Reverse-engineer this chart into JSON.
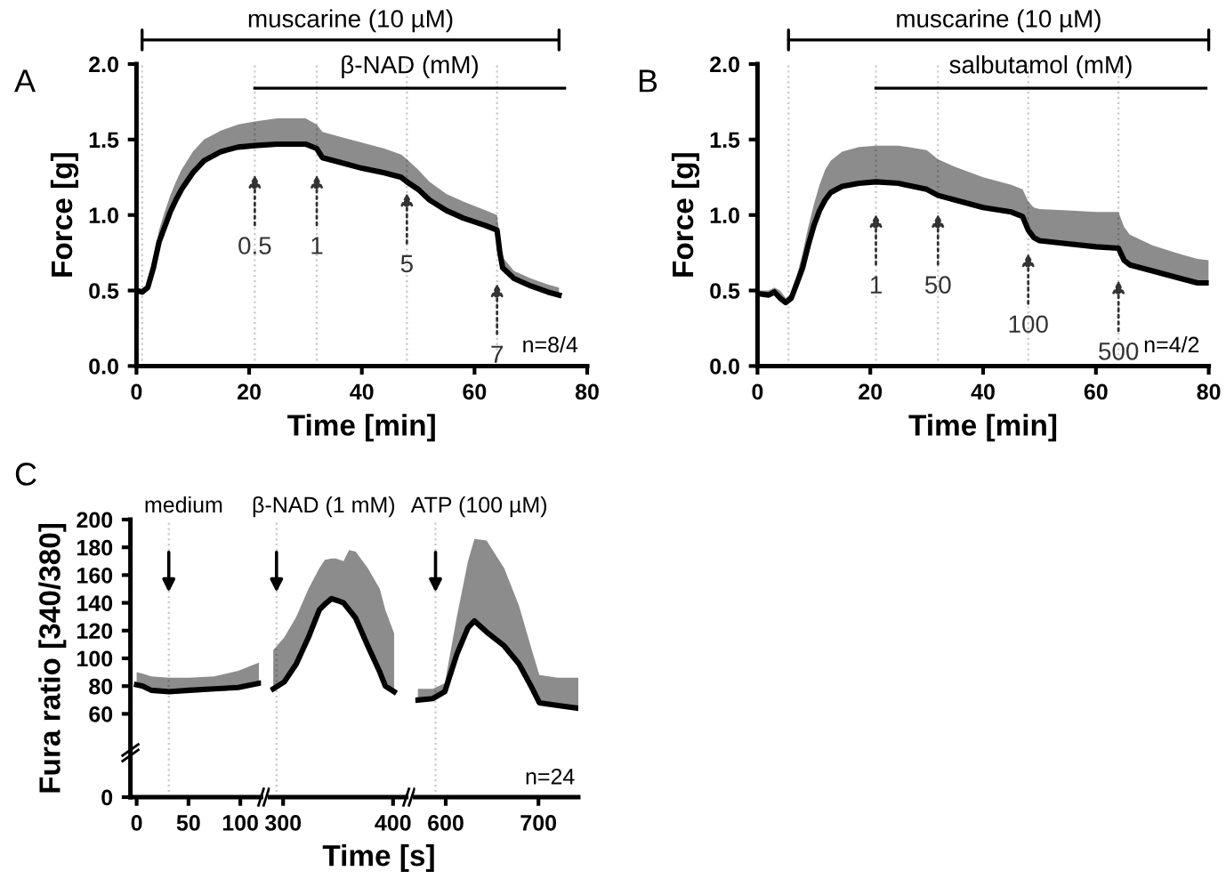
{
  "chart_data": [
    {
      "type": "line",
      "title": "A",
      "xlabel": "Time [min]",
      "ylabel": "Force [g]",
      "xlim": [
        0,
        80
      ],
      "xticks": [
        0,
        20,
        40,
        60,
        80
      ],
      "ylim": [
        0,
        2
      ],
      "yticks": [
        {
          "value": 0,
          "label": "0.0"
        },
        0.5,
        {
          "value": 1,
          "label": "1.0"
        },
        1.5,
        {
          "value": 2,
          "label": "2.0"
        }
      ],
      "annotations": [
        "muscarine (10 µM)",
        {
          "text": "0.5",
          "x": 21,
          "y": 1.3
        },
        {
          "text": "1",
          "x": 32,
          "y": 1.3
        },
        {
          "text": "5",
          "x": 48,
          "y": 1.18
        },
        {
          "text": "7",
          "x": 64,
          "y": 0.58
        },
        "n=8/4"
      ],
      "ref_lines": [
        {
          "axis": "x",
          "value": 1,
          "color": "#c8c8c8",
          "line_style": "dotted"
        },
        {
          "axis": "x",
          "value": 21,
          "color": "#c8c8c8",
          "line_style": "dotted"
        },
        {
          "axis": "x",
          "value": 32,
          "color": "#c8c8c8",
          "line_style": "dotted"
        },
        {
          "axis": "x",
          "value": 48,
          "color": "#c8c8c8",
          "line_style": "dotted"
        },
        {
          "axis": "x",
          "value": 64,
          "color": "#c8c8c8",
          "line_style": "dotted"
        }
      ],
      "series": [
        {
          "color": "#000000",
          "x": [
            0,
            1,
            2,
            3,
            4,
            5,
            6,
            7,
            8,
            10,
            12,
            15,
            18,
            21,
            25,
            30,
            32,
            33,
            36,
            40,
            44,
            47,
            48,
            50,
            52,
            55,
            58,
            62,
            64,
            64.5,
            65,
            67,
            70,
            73,
            75
          ],
          "values": [
            0.5,
            0.49,
            0.52,
            0.65,
            0.82,
            0.92,
            1.02,
            1.1,
            1.17,
            1.28,
            1.36,
            1.42,
            1.45,
            1.46,
            1.47,
            1.47,
            1.44,
            1.38,
            1.35,
            1.31,
            1.28,
            1.25,
            1.22,
            1.17,
            1.1,
            1.03,
            0.98,
            0.93,
            0.9,
            0.75,
            0.65,
            0.58,
            0.53,
            0.49,
            0.47
          ],
          "lower": [
            0.5,
            0.49,
            0.52,
            0.65,
            0.82,
            0.92,
            1.02,
            1.1,
            1.17,
            1.28,
            1.36,
            1.42,
            1.45,
            1.46,
            1.47,
            1.47,
            1.44,
            1.38,
            1.35,
            1.31,
            1.28,
            1.25,
            1.22,
            1.17,
            1.1,
            1.03,
            0.98,
            0.93,
            0.9,
            0.75,
            0.65,
            0.58,
            0.53,
            0.49,
            0.47
          ],
          "upper": [
            0.5,
            0.5,
            0.55,
            0.72,
            0.9,
            1.02,
            1.13,
            1.22,
            1.3,
            1.42,
            1.5,
            1.56,
            1.6,
            1.62,
            1.64,
            1.64,
            1.6,
            1.55,
            1.52,
            1.48,
            1.44,
            1.4,
            1.37,
            1.3,
            1.22,
            1.14,
            1.09,
            1.03,
            1.0,
            0.85,
            0.72,
            0.63,
            0.58,
            0.54,
            0.52
          ]
        },
        {
          "name": "β-NAD (mM)",
          "color": "#000000",
          "x": [
            21,
            76
          ],
          "values": [
            1.84,
            1.84
          ]
        }
      ]
    },
    {
      "type": "line",
      "title": "B",
      "xlabel": "Time [min]",
      "ylabel": "Force [g]",
      "xlim": [
        0,
        80
      ],
      "xticks": [
        0,
        20,
        40,
        60,
        80
      ],
      "ylim": [
        0,
        2
      ],
      "yticks": [
        {
          "value": 0,
          "label": "0.0"
        },
        0.5,
        {
          "value": 1,
          "label": "1.0"
        },
        1.5,
        {
          "value": 2,
          "label": "2.0"
        }
      ],
      "annotations": [
        "muscarine (10 µM)",
        {
          "text": "1",
          "x": 21,
          "y": 1.04
        },
        {
          "text": "50",
          "x": 32,
          "y": 1.04
        },
        {
          "text": "100",
          "x": 48,
          "y": 0.78
        },
        {
          "text": "500",
          "x": 64,
          "y": 0.6
        },
        "n=4/2"
      ],
      "ref_lines": [
        {
          "axis": "x",
          "value": 5.5,
          "color": "#c8c8c8",
          "line_style": "dotted"
        },
        {
          "axis": "x",
          "value": 21,
          "color": "#c8c8c8",
          "line_style": "dotted"
        },
        {
          "axis": "x",
          "value": 32,
          "color": "#c8c8c8",
          "line_style": "dotted"
        },
        {
          "axis": "x",
          "value": 48,
          "color": "#c8c8c8",
          "line_style": "dotted"
        },
        {
          "axis": "x",
          "value": 64,
          "color": "#c8c8c8",
          "line_style": "dotted"
        }
      ],
      "series": [
        {
          "color": "#000000",
          "x": [
            0,
            2,
            3,
            4,
            5,
            6,
            7,
            8,
            9,
            10,
            11,
            12,
            13,
            15,
            18,
            21,
            25,
            30,
            32,
            35,
            40,
            45,
            47,
            48,
            49,
            50,
            55,
            60,
            64,
            65,
            66,
            70,
            75,
            78,
            80
          ],
          "values": [
            0.48,
            0.47,
            0.49,
            0.45,
            0.42,
            0.45,
            0.55,
            0.65,
            0.8,
            0.93,
            1.03,
            1.1,
            1.15,
            1.19,
            1.21,
            1.22,
            1.21,
            1.17,
            1.13,
            1.1,
            1.05,
            1.02,
            0.99,
            0.9,
            0.85,
            0.83,
            0.81,
            0.79,
            0.78,
            0.7,
            0.67,
            0.63,
            0.58,
            0.55,
            0.55
          ],
          "lower": [
            0.48,
            0.47,
            0.49,
            0.45,
            0.42,
            0.45,
            0.55,
            0.65,
            0.8,
            0.93,
            1.03,
            1.1,
            1.15,
            1.19,
            1.21,
            1.22,
            1.21,
            1.17,
            1.13,
            1.1,
            1.05,
            1.02,
            0.99,
            0.9,
            0.85,
            0.83,
            0.81,
            0.79,
            0.78,
            0.7,
            0.67,
            0.63,
            0.58,
            0.55,
            0.55
          ],
          "upper": [
            0.5,
            0.5,
            0.52,
            0.5,
            0.45,
            0.48,
            0.6,
            0.75,
            0.92,
            1.07,
            1.2,
            1.3,
            1.36,
            1.42,
            1.45,
            1.46,
            1.46,
            1.43,
            1.37,
            1.32,
            1.25,
            1.2,
            1.17,
            1.09,
            1.05,
            1.04,
            1.03,
            1.02,
            1.02,
            0.92,
            0.87,
            0.8,
            0.74,
            0.71,
            0.7
          ]
        },
        {
          "name": "salbutamol (mM)",
          "color": "#000000",
          "x": [
            21,
            79.5
          ],
          "values": [
            1.84,
            1.84
          ]
        }
      ]
    },
    {
      "type": "line",
      "title": "C",
      "ylabel": "Fura ratio [340/380]",
      "xlim": [
        -6,
        120
      ],
      "xticks": [
        0,
        50,
        100
      ],
      "ylim": [
        0,
        200
      ],
      "yticks": [
        0,
        60,
        80,
        100,
        120,
        140,
        160,
        180,
        200
      ],
      "ref_lines": [
        {
          "axis": "x",
          "value": 31,
          "label": "medium",
          "color": "#c8c8c8",
          "line_style": "dotted"
        }
      ],
      "series": [
        {
          "color": "#000000",
          "x": [
            0,
            6,
            14,
            31,
            51,
            75,
            98,
            118
          ],
          "values": [
            81,
            80,
            77,
            76,
            77,
            78,
            79,
            82
          ],
          "lower": [
            81,
            80,
            77,
            76,
            77,
            78,
            79,
            82
          ],
          "upper": [
            90,
            89,
            87,
            86,
            86,
            87,
            91,
            97
          ]
        }
      ]
    },
    {
      "type": "line",
      "xlabel": "Time [s]",
      "xlim": [
        288,
        412
      ],
      "xticks": [
        300,
        400
      ],
      "ylim": [
        0,
        200
      ],
      "tick_labels": "x",
      "ref_lines": [
        {
          "axis": "x",
          "value": 294,
          "label": "β-NAD (1 mM)",
          "color": "#c8c8c8",
          "line_style": "dotted"
        }
      ],
      "series": [
        {
          "color": "#000000",
          "x": [
            291,
            301,
            312,
            323,
            333,
            338,
            344,
            348,
            355,
            360,
            366,
            377,
            388,
            393,
            401
          ],
          "values": [
            78,
            83,
            96,
            115,
            135,
            139,
            143,
            142,
            140,
            135,
            129,
            109,
            90,
            80,
            76
          ],
          "lower": [
            78,
            83,
            96,
            115,
            135,
            139,
            143,
            142,
            140,
            135,
            129,
            109,
            90,
            80,
            76
          ],
          "upper": [
            106,
            115,
            130,
            150,
            165,
            171,
            172,
            172,
            170,
            178,
            177,
            165,
            150,
            135,
            118
          ]
        }
      ]
    },
    {
      "type": "line",
      "xlim": [
        567,
        743
      ],
      "xticks": [
        600,
        700
      ],
      "ylim": [
        0,
        200
      ],
      "tick_labels": "x",
      "annotations": [
        "n=24"
      ],
      "ref_lines": [
        {
          "axis": "x",
          "value": 589,
          "label": "ATP (100 µM)",
          "color": "#c8c8c8",
          "line_style": "dotted"
        }
      ],
      "series": [
        {
          "color": "#000000",
          "x": [
            570,
            586,
            599,
            612,
            624,
            631,
            644,
            663,
            679,
            692,
            701,
            721,
            743
          ],
          "values": [
            70,
            71,
            76,
            103,
            122,
            127,
            119,
            109,
            96,
            80,
            68,
            66,
            64
          ],
          "lower": [
            70,
            71,
            76,
            103,
            122,
            127,
            119,
            109,
            96,
            80,
            68,
            66,
            64
          ],
          "upper": [
            78,
            78,
            82,
            130,
            170,
            186,
            185,
            165,
            138,
            108,
            88,
            86,
            86
          ]
        }
      ]
    }
  ]
}
